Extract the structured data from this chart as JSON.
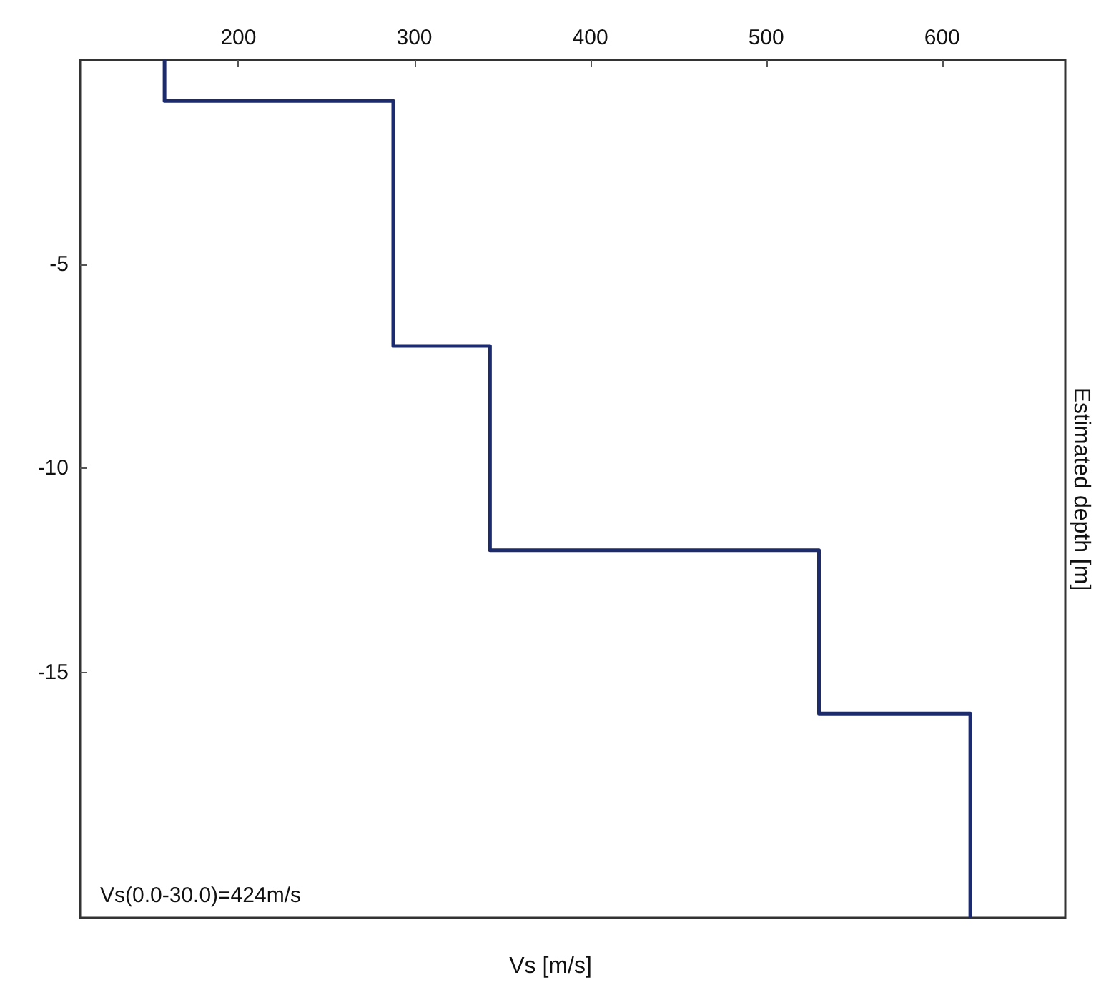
{
  "chart_data": {
    "type": "line",
    "xlabel": "Vs [m/s]",
    "ylabel": "Estimated depth [m]",
    "x": [
      158,
      158,
      288,
      288,
      343,
      343,
      530,
      530,
      616,
      616
    ],
    "series": [
      {
        "color": "#1c2a6e",
        "values": [
          0,
          -1,
          -1,
          -7,
          -7,
          -12,
          -12,
          -16,
          -16,
          -21
        ]
      }
    ],
    "xlim": [
      110,
      670
    ],
    "xticks": [
      200,
      300,
      400,
      500,
      600
    ],
    "ylim": [
      -21,
      0
    ],
    "yticks": [
      -5,
      -10,
      -15
    ],
    "annotations": [
      "Vs(0.0-30.0)=424m/s"
    ],
    "marker": "none",
    "line_style": "solid"
  }
}
